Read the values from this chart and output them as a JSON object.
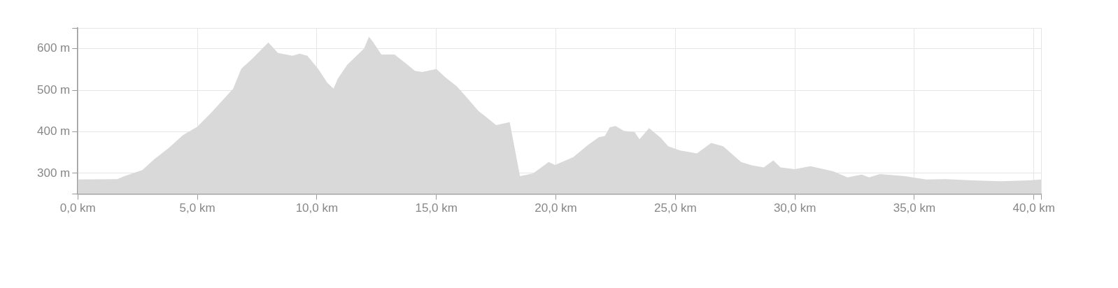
{
  "chart_data": {
    "type": "area",
    "grid": true,
    "xlim": [
      0,
      40.3
    ],
    "xticks": [
      {
        "value": 0,
        "label": "0,0 km"
      },
      {
        "value": 5,
        "label": "5,0 km"
      },
      {
        "value": 10,
        "label": "10,0 km"
      },
      {
        "value": 15,
        "label": "15,0 km"
      },
      {
        "value": 20,
        "label": "20,0 km"
      },
      {
        "value": 25,
        "label": "25,0 km"
      },
      {
        "value": 30,
        "label": "30,0 km"
      },
      {
        "value": 35,
        "label": "35,0 km"
      },
      {
        "value": 40,
        "label": "40,0 km"
      },
      {
        "value": 40.3,
        "label": null
      }
    ],
    "ylim": [
      250,
      650
    ],
    "yticks": [
      {
        "value": 250,
        "label": null
      },
      {
        "value": 300,
        "label": "300 m"
      },
      {
        "value": 400,
        "label": "400 m"
      },
      {
        "value": 500,
        "label": "500 m"
      },
      {
        "value": 600,
        "label": "600 m"
      },
      {
        "value": 650,
        "label": null
      }
    ],
    "series": [
      {
        "color": "#d9d9d9",
        "x": [
          0,
          1.65,
          1.95,
          2.4,
          2.7,
          3.2,
          3.8,
          4.4,
          5.0,
          5.6,
          6.5,
          6.84,
          7.3,
          7.97,
          8.37,
          8.98,
          9.28,
          9.6,
          10.05,
          10.44,
          10.7,
          10.87,
          11.27,
          11.57,
          11.97,
          12.18,
          12.34,
          12.7,
          13.25,
          13.7,
          14.1,
          14.4,
          15.0,
          15.4,
          15.85,
          16.3,
          16.76,
          17.07,
          17.5,
          18.07,
          18.5,
          19.05,
          19.7,
          19.97,
          20.73,
          21.34,
          21.8,
          22.05,
          22.26,
          22.5,
          22.85,
          23.3,
          23.5,
          23.9,
          24.4,
          24.7,
          25.2,
          25.9,
          26.5,
          27.0,
          27.75,
          28.2,
          28.7,
          29.1,
          29.4,
          30.0,
          30.65,
          31.6,
          32.2,
          32.8,
          33.1,
          33.56,
          34.6,
          35.5,
          36.3,
          37.4,
          38.6,
          39.8,
          40.3
        ],
        "values": [
          285,
          286,
          293,
          302,
          308,
          334,
          361,
          392,
          412,
          447,
          504,
          552,
          576,
          615,
          590,
          583,
          588,
          583,
          552,
          518,
          504,
          527,
          561,
          578,
          600,
          629,
          617,
          586,
          586,
          566,
          547,
          544,
          551,
          530,
          510,
          481,
          450,
          436,
          416,
          423,
          293,
          300,
          327,
          320,
          339,
          368,
          387,
          390,
          411,
          414,
          402,
          399,
          382,
          409,
          385,
          365,
          355,
          348,
          373,
          365,
          327,
          319,
          314,
          331,
          314,
          310,
          317,
          305,
          290,
          297,
          290,
          298,
          293,
          285,
          286,
          283,
          281,
          283,
          285
        ]
      }
    ]
  }
}
